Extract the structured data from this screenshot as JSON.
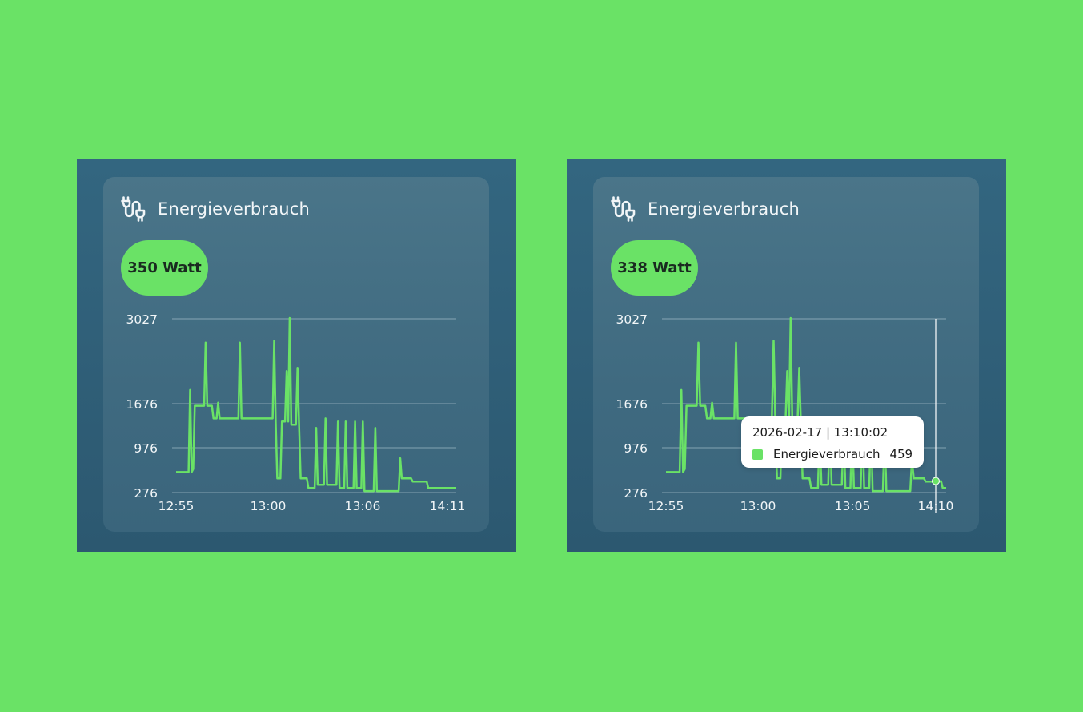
{
  "colors": {
    "background": "#6ae266",
    "accent": "#6ae266",
    "panel": "#336680",
    "card": "#4a7589"
  },
  "cards": [
    {
      "title": "Energieverbrauch",
      "icon": "plug-cable-icon",
      "badge": "350 Watt",
      "chart_data": {
        "type": "line",
        "ylim": [
          276,
          3027
        ],
        "yticks": [
          "3027",
          "1676",
          "976",
          "276"
        ],
        "xticks": [
          "12:55",
          "13:00",
          "13:06",
          "14:11"
        ],
        "series": [
          {
            "values": [
              600,
              600,
              600,
              600,
              600,
              600,
              600,
              600,
              600,
              1900,
              600,
              650,
              1650,
              1650,
              1650,
              1650,
              1650,
              1650,
              1650,
              2650,
              1650,
              1650,
              1650,
              1650,
              1450,
              1450,
              1450,
              1700,
              1450,
              1450,
              1450,
              1450,
              1450,
              1450,
              1450,
              1450,
              1450,
              1450,
              1450,
              1450,
              1450,
              2650,
              1450,
              1450,
              1450,
              1450,
              1450,
              1450,
              1450,
              1450,
              1450,
              1450,
              1450,
              1450,
              1450,
              1450,
              1450,
              1450,
              1450,
              1450,
              1450,
              1450,
              1450,
              2680,
              1400,
              500,
              500,
              500,
              1400,
              1400,
              1400,
              2200,
              1400,
              3040,
              1350,
              1350,
              1350,
              1350,
              2250,
              1350,
              500,
              500,
              500,
              500,
              500,
              350,
              350,
              350,
              350,
              350,
              1300,
              400,
              400,
              400,
              400,
              400,
              1450,
              400,
              400,
              400,
              400,
              400,
              400,
              400,
              1400,
              350,
              350,
              350,
              350,
              1400,
              350,
              350,
              350,
              350,
              350,
              1400,
              350,
              350,
              350,
              350,
              1400,
              300,
              300,
              300,
              300,
              300,
              300,
              300,
              1300,
              300,
              300,
              300,
              300,
              300,
              300,
              300,
              300,
              300,
              300,
              300,
              300,
              300,
              300,
              300,
              820,
              500,
              500,
              500,
              500,
              500,
              500,
              500,
              450,
              450,
              450,
              450,
              450,
              450,
              450,
              450,
              450,
              450,
              350,
              350,
              350,
              350,
              350,
              350,
              350,
              350,
              350,
              350,
              350,
              350,
              350,
              350,
              350,
              350,
              350,
              350,
              350
            ]
          }
        ]
      }
    },
    {
      "title": "Energieverbrauch",
      "icon": "plug-cable-icon",
      "badge": "338 Watt",
      "chart_data": {
        "type": "line",
        "ylim": [
          276,
          3027
        ],
        "yticks": [
          "3027",
          "1676",
          "976",
          "276"
        ],
        "xticks": [
          "12:55",
          "13:00",
          "13:05",
          "14:10"
        ],
        "series": [
          {
            "values": [
              600,
              600,
              600,
              600,
              600,
              600,
              600,
              600,
              600,
              1900,
              600,
              650,
              1650,
              1650,
              1650,
              1650,
              1650,
              1650,
              1650,
              2650,
              1650,
              1650,
              1650,
              1650,
              1450,
              1450,
              1450,
              1700,
              1450,
              1450,
              1450,
              1450,
              1450,
              1450,
              1450,
              1450,
              1450,
              1450,
              1450,
              1450,
              1450,
              2650,
              1450,
              1450,
              1450,
              1450,
              1450,
              1450,
              1450,
              1450,
              1450,
              1450,
              1450,
              1450,
              1450,
              1450,
              1450,
              1450,
              1450,
              1450,
              1450,
              1450,
              1450,
              2680,
              1400,
              500,
              500,
              500,
              1400,
              1400,
              1400,
              2200,
              1400,
              3040,
              1350,
              1350,
              1350,
              1350,
              2250,
              1350,
              500,
              500,
              500,
              500,
              500,
              350,
              350,
              350,
              350,
              350,
              1300,
              400,
              400,
              400,
              400,
              400,
              1450,
              400,
              400,
              400,
              400,
              400,
              400,
              400,
              1400,
              350,
              350,
              350,
              350,
              1400,
              350,
              350,
              350,
              350,
              350,
              1400,
              350,
              350,
              350,
              350,
              1400,
              300,
              300,
              300,
              300,
              300,
              300,
              300,
              1300,
              300,
              300,
              300,
              300,
              300,
              300,
              300,
              300,
              300,
              300,
              300,
              300,
              300,
              300,
              300,
              820,
              500,
              500,
              500,
              500,
              500,
              500,
              500,
              450,
              450,
              450,
              450,
              450,
              450,
              450,
              450,
              450,
              459,
              350,
              350,
              350
            ]
          }
        ],
        "tooltip": {
          "timestamp": "2026-02-17 | 13:10:02",
          "series_name": "Energieverbrauch",
          "value": "459"
        }
      }
    }
  ]
}
